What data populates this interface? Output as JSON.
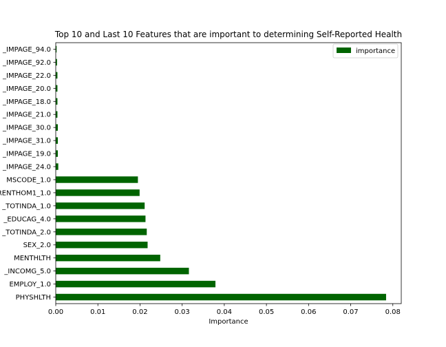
{
  "chart_data": {
    "type": "bar",
    "orientation": "horizontal",
    "title": "Top 10 and Last 10 Features that are important to determining Self-Reported Health",
    "xlabel": "Importance",
    "ylabel": "",
    "xlim": [
      0,
      0.082
    ],
    "xticks": [
      0.0,
      0.01,
      0.02,
      0.03,
      0.04,
      0.05,
      0.06,
      0.07,
      0.08
    ],
    "xtick_labels": [
      "0.00",
      "0.01",
      "0.02",
      "0.03",
      "0.04",
      "0.05",
      "0.06",
      "0.07",
      "0.08"
    ],
    "categories": [
      "PHYSHLTH",
      "EMPLOY_1.0",
      "_INCOMG_5.0",
      "MENTHLTH",
      "SEX_2.0",
      "_TOTINDA_2.0",
      "_EDUCAG_4.0",
      "_TOTINDA_1.0",
      "RENTHOM1_1.0",
      "MSCODE_1.0",
      "_IMPAGE_24.0",
      "_IMPAGE_19.0",
      "_IMPAGE_31.0",
      "_IMPAGE_30.0",
      "_IMPAGE_21.0",
      "_IMPAGE_18.0",
      "_IMPAGE_20.0",
      "_IMPAGE_22.0",
      "_IMPAGE_92.0",
      "_IMPAGE_94.0"
    ],
    "series": [
      {
        "name": "importance",
        "color": "#006400",
        "values": [
          0.0784,
          0.0379,
          0.0316,
          0.0248,
          0.0218,
          0.0216,
          0.0213,
          0.0211,
          0.0199,
          0.0195,
          0.0006,
          0.0005,
          0.0005,
          0.0005,
          0.0004,
          0.0004,
          0.0004,
          0.0004,
          0.0003,
          0.0002
        ]
      }
    ],
    "legend_position": "upper right",
    "grid": false
  }
}
